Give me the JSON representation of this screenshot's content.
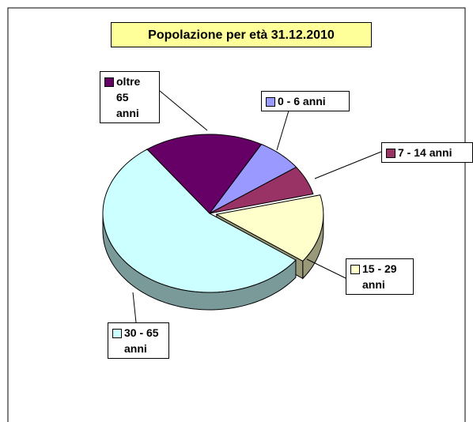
{
  "chart_data": {
    "type": "pie3d",
    "title": "Popolazione per età 31.12.2010",
    "categories": [
      "0 - 6 anni",
      "7 - 14 anni",
      "15 - 29 anni",
      "30 - 65 anni",
      "oltre 65 anni"
    ],
    "values": [
      7,
      6,
      14,
      55,
      18
    ],
    "colors": [
      "#9999ff",
      "#993366",
      "#ffffcc",
      "#ccffff",
      "#660066"
    ]
  }
}
